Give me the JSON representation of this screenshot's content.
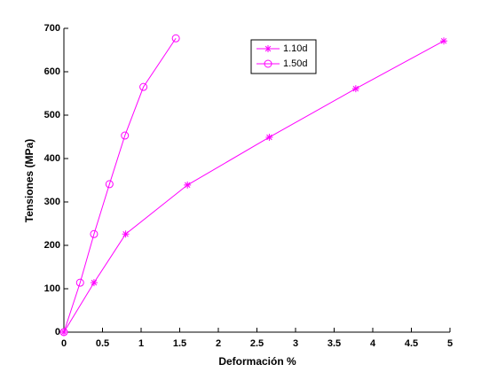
{
  "chart_data": {
    "type": "line",
    "xlabel": "Deformación %",
    "ylabel": "Tensiones (MPa)",
    "xlim": [
      0,
      5
    ],
    "xticks": [
      0,
      0.5,
      1,
      1.5,
      2,
      2.5,
      3,
      3.5,
      4,
      4.5,
      5
    ],
    "ylim": [
      0,
      700
    ],
    "yticks": [
      0,
      100,
      200,
      300,
      400,
      500,
      600,
      700
    ],
    "legend": "top-center",
    "series": [
      {
        "name": "1.10d",
        "color": "#ff00ff",
        "marker": "asterisk",
        "x": [
          0,
          0.39,
          0.8,
          1.6,
          2.66,
          3.78,
          4.92
        ],
        "values": [
          0,
          114,
          226,
          339,
          449,
          561,
          671
        ]
      },
      {
        "name": "1.50d",
        "color": "#ff00ff",
        "marker": "circle",
        "x": [
          0,
          0.21,
          0.39,
          0.59,
          0.79,
          1.03,
          1.45
        ],
        "values": [
          0,
          114,
          226,
          341,
          453,
          565,
          677
        ]
      }
    ]
  }
}
